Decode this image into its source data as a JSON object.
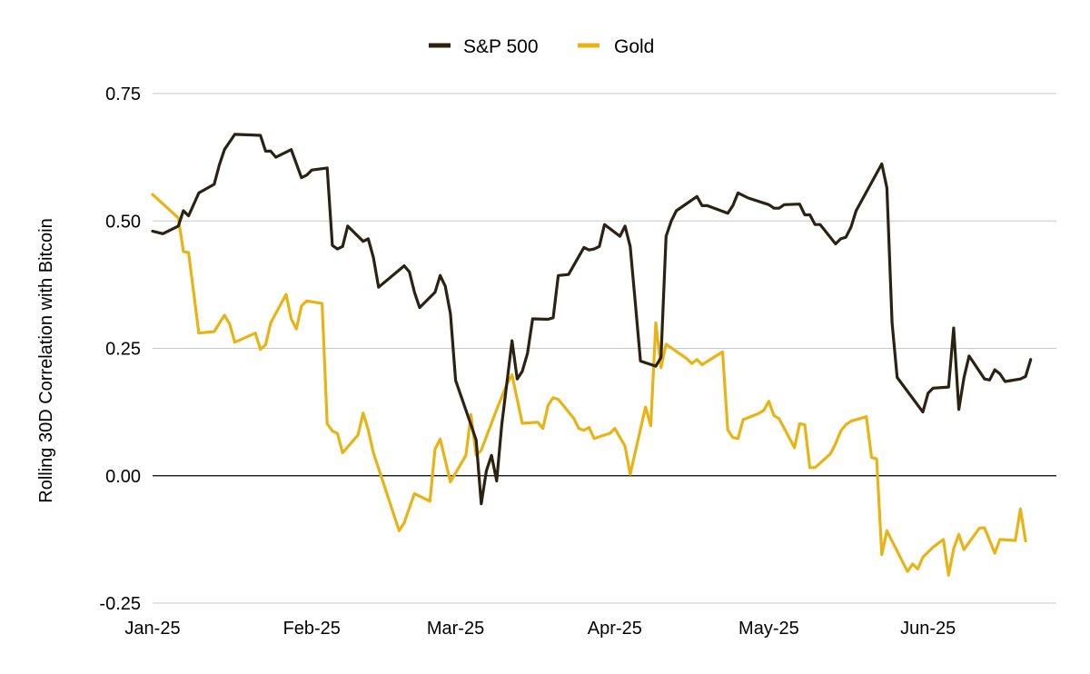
{
  "chart_data": {
    "type": "line",
    "title": "",
    "ylabel": "Rolling 30D Correlation with Bitcoin",
    "xlabel": "",
    "ylim": [
      -0.25,
      0.75
    ],
    "yticks": [
      "0.75",
      "0.50",
      "0.25",
      "0.00",
      "-0.25"
    ],
    "ytick_values": [
      0.75,
      0.5,
      0.25,
      0.0,
      -0.25
    ],
    "xlim": [
      0,
      176
    ],
    "xticks": [
      {
        "label": "Jan-25",
        "x": 0
      },
      {
        "label": "Feb-25",
        "x": 31
      },
      {
        "label": "Mar-25",
        "x": 59
      },
      {
        "label": "Apr-25",
        "x": 90
      },
      {
        "label": "May-25",
        "x": 120
      },
      {
        "label": "Jun-25",
        "x": 151
      }
    ],
    "grid": true,
    "legend_position": "top-center",
    "series": [
      {
        "name": "S&P 500",
        "color": "#2b2211",
        "points": [
          [
            0,
            0.48
          ],
          [
            2,
            0.475
          ],
          [
            5,
            0.49
          ],
          [
            6,
            0.52
          ],
          [
            7,
            0.51
          ],
          [
            9,
            0.555
          ],
          [
            12,
            0.572
          ],
          [
            13,
            0.61
          ],
          [
            14,
            0.64
          ],
          [
            16,
            0.67
          ],
          [
            21,
            0.668
          ],
          [
            22,
            0.637
          ],
          [
            23,
            0.637
          ],
          [
            24,
            0.625
          ],
          [
            27,
            0.64
          ],
          [
            29,
            0.585
          ],
          [
            30,
            0.59
          ],
          [
            31,
            0.6
          ],
          [
            34,
            0.604
          ],
          [
            35,
            0.452
          ],
          [
            36,
            0.445
          ],
          [
            37,
            0.45
          ],
          [
            38,
            0.49
          ],
          [
            41,
            0.46
          ],
          [
            42,
            0.465
          ],
          [
            43,
            0.428
          ],
          [
            44,
            0.37
          ],
          [
            49,
            0.412
          ],
          [
            50,
            0.4
          ],
          [
            51,
            0.36
          ],
          [
            52,
            0.33
          ],
          [
            55,
            0.36
          ],
          [
            56,
            0.393
          ],
          [
            57,
            0.372
          ],
          [
            58,
            0.318
          ],
          [
            59,
            0.187
          ],
          [
            62,
            0.1
          ],
          [
            63,
            0.07
          ],
          [
            64,
            -0.055
          ],
          [
            65,
            0.01
          ],
          [
            66,
            0.04
          ],
          [
            67,
            -0.01
          ],
          [
            68,
            0.1
          ],
          [
            70,
            0.265
          ],
          [
            71,
            0.19
          ],
          [
            72,
            0.205
          ],
          [
            73,
            0.24
          ],
          [
            74,
            0.308
          ],
          [
            77,
            0.307
          ],
          [
            78,
            0.31
          ],
          [
            79,
            0.393
          ],
          [
            81,
            0.395
          ],
          [
            84,
            0.448
          ],
          [
            85,
            0.443
          ],
          [
            86,
            0.445
          ],
          [
            87,
            0.45
          ],
          [
            88,
            0.493
          ],
          [
            91,
            0.47
          ],
          [
            92,
            0.49
          ],
          [
            93,
            0.45
          ],
          [
            94,
            0.34
          ],
          [
            95,
            0.225
          ],
          [
            98,
            0.215
          ],
          [
            99,
            0.232
          ],
          [
            100,
            0.47
          ],
          [
            101,
            0.5
          ],
          [
            102,
            0.52
          ],
          [
            106,
            0.548
          ],
          [
            107,
            0.53
          ],
          [
            108,
            0.53
          ],
          [
            112,
            0.515
          ],
          [
            113,
            0.53
          ],
          [
            114,
            0.555
          ],
          [
            116,
            0.545
          ],
          [
            120,
            0.532
          ],
          [
            121,
            0.525
          ],
          [
            122,
            0.525
          ],
          [
            123,
            0.532
          ],
          [
            126,
            0.533
          ],
          [
            127,
            0.512
          ],
          [
            128,
            0.512
          ],
          [
            129,
            0.493
          ],
          [
            130,
            0.493
          ],
          [
            133,
            0.455
          ],
          [
            134,
            0.465
          ],
          [
            135,
            0.468
          ],
          [
            136,
            0.488
          ],
          [
            137,
            0.52
          ],
          [
            142,
            0.612
          ],
          [
            143,
            0.565
          ],
          [
            144,
            0.3
          ],
          [
            145,
            0.193
          ],
          [
            150,
            0.125
          ],
          [
            151,
            0.162
          ],
          [
            152,
            0.172
          ],
          [
            155,
            0.174
          ],
          [
            156,
            0.29
          ],
          [
            157,
            0.13
          ],
          [
            158,
            0.192
          ],
          [
            159,
            0.235
          ],
          [
            162,
            0.19
          ],
          [
            163,
            0.188
          ],
          [
            164,
            0.208
          ],
          [
            165,
            0.2
          ],
          [
            166,
            0.185
          ],
          [
            169,
            0.19
          ],
          [
            170,
            0.195
          ],
          [
            171,
            0.228
          ]
        ]
      },
      {
        "name": "Gold",
        "color": "#e8b415",
        "points": [
          [
            0,
            0.552
          ],
          [
            5,
            0.506
          ],
          [
            6,
            0.44
          ],
          [
            7,
            0.438
          ],
          [
            9,
            0.28
          ],
          [
            12,
            0.283
          ],
          [
            14,
            0.315
          ],
          [
            15,
            0.298
          ],
          [
            16,
            0.262
          ],
          [
            20,
            0.28
          ],
          [
            21,
            0.248
          ],
          [
            22,
            0.257
          ],
          [
            23,
            0.3
          ],
          [
            26,
            0.356
          ],
          [
            27,
            0.308
          ],
          [
            28,
            0.288
          ],
          [
            29,
            0.333
          ],
          [
            30,
            0.343
          ],
          [
            33,
            0.338
          ],
          [
            34,
            0.102
          ],
          [
            35,
            0.088
          ],
          [
            36,
            0.083
          ],
          [
            37,
            0.045
          ],
          [
            40,
            0.08
          ],
          [
            41,
            0.123
          ],
          [
            42,
            0.09
          ],
          [
            43,
            0.045
          ],
          [
            48,
            -0.108
          ],
          [
            49,
            -0.092
          ],
          [
            51,
            -0.035
          ],
          [
            54,
            -0.05
          ],
          [
            55,
            0.052
          ],
          [
            56,
            0.072
          ],
          [
            58,
            -0.012
          ],
          [
            61,
            0.04
          ],
          [
            62,
            0.12
          ],
          [
            63,
            0.04
          ],
          [
            64,
            0.05
          ],
          [
            67,
            0.13
          ],
          [
            69,
            0.18
          ],
          [
            70,
            0.198
          ],
          [
            71,
            0.15
          ],
          [
            72,
            0.103
          ],
          [
            75,
            0.105
          ],
          [
            76,
            0.093
          ],
          [
            77,
            0.138
          ],
          [
            78,
            0.153
          ],
          [
            79,
            0.15
          ],
          [
            82,
            0.113
          ],
          [
            83,
            0.093
          ],
          [
            84,
            0.089
          ],
          [
            85,
            0.095
          ],
          [
            86,
            0.073
          ],
          [
            88,
            0.08
          ],
          [
            89,
            0.083
          ],
          [
            90,
            0.093
          ],
          [
            92,
            0.058
          ],
          [
            93,
            0.003
          ],
          [
            96,
            0.135
          ],
          [
            97,
            0.098
          ],
          [
            98,
            0.3
          ],
          [
            99,
            0.212
          ],
          [
            100,
            0.258
          ],
          [
            104,
            0.23
          ],
          [
            105,
            0.22
          ],
          [
            106,
            0.228
          ],
          [
            107,
            0.218
          ],
          [
            111,
            0.243
          ],
          [
            112,
            0.09
          ],
          [
            113,
            0.075
          ],
          [
            114,
            0.073
          ],
          [
            115,
            0.11
          ],
          [
            118,
            0.122
          ],
          [
            119,
            0.128
          ],
          [
            120,
            0.146
          ],
          [
            121,
            0.118
          ],
          [
            122,
            0.112
          ],
          [
            125,
            0.055
          ],
          [
            126,
            0.102
          ],
          [
            127,
            0.1
          ],
          [
            128,
            0.016
          ],
          [
            129,
            0.016
          ],
          [
            132,
            0.043
          ],
          [
            133,
            0.063
          ],
          [
            134,
            0.088
          ],
          [
            135,
            0.1
          ],
          [
            136,
            0.107
          ],
          [
            139,
            0.116
          ],
          [
            140,
            0.036
          ],
          [
            141,
            0.033
          ],
          [
            142,
            -0.155
          ],
          [
            143,
            -0.108
          ],
          [
            147,
            -0.188
          ],
          [
            148,
            -0.173
          ],
          [
            149,
            -0.183
          ],
          [
            150,
            -0.16
          ],
          [
            152,
            -0.14
          ],
          [
            154,
            -0.125
          ],
          [
            155,
            -0.195
          ],
          [
            156,
            -0.143
          ],
          [
            157,
            -0.115
          ],
          [
            158,
            -0.145
          ],
          [
            161,
            -0.103
          ],
          [
            162,
            -0.102
          ],
          [
            164,
            -0.152
          ],
          [
            165,
            -0.125
          ],
          [
            168,
            -0.127
          ],
          [
            169,
            -0.065
          ],
          [
            170,
            -0.128
          ]
        ]
      }
    ]
  }
}
